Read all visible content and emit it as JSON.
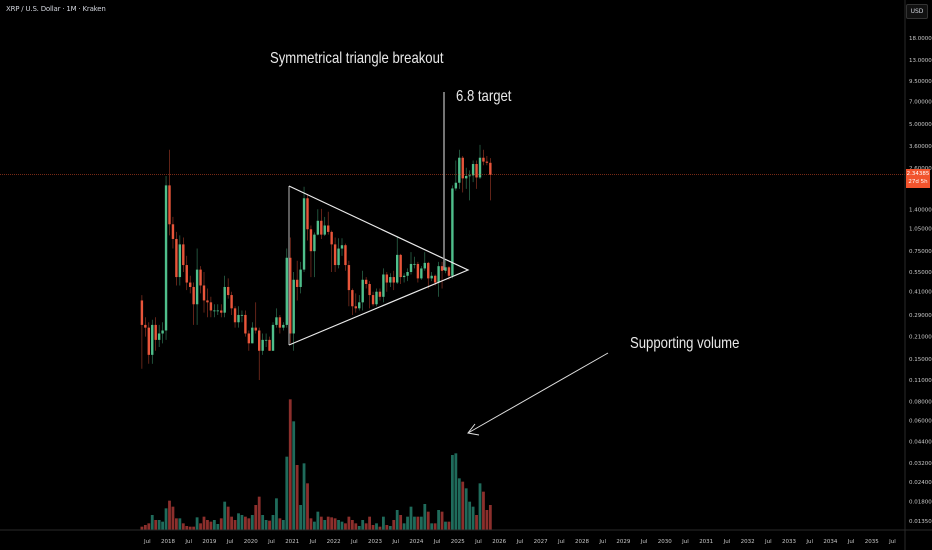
{
  "header": {
    "symbol": "XRP / U.S. Dollar · 1M · Kraken",
    "currency": "USD"
  },
  "annotations": {
    "title": "Symmetrical triangle breakout",
    "target": "6.8 target",
    "volume_note": "Supporting volume"
  },
  "price_label": {
    "price": "2.34385",
    "countdown": "27d 5h",
    "color": "#f2542d"
  },
  "colors": {
    "up": "#4fbf8b",
    "down": "#e8553a",
    "vol_up": "#1f6b5b",
    "vol_down": "#8c2f2c",
    "drawing": "#e6e6e6"
  },
  "chart_data": {
    "type": "candlestick",
    "scale": "log",
    "start": "2017-05",
    "interval": "1M",
    "y_ticks": [
      18,
      13,
      9.5,
      7,
      5,
      3.6,
      2.6,
      1.4,
      1.05,
      0.75,
      0.55,
      0.41,
      0.29,
      0.21,
      0.15,
      0.11,
      0.08,
      0.06,
      0.044,
      0.032,
      0.024,
      0.018,
      0.0135
    ],
    "y_tick_labels": [
      "18.00000",
      "13.00000",
      "9.50000",
      "7.00000",
      "5.00000",
      "3.60000",
      "2.60000",
      "1.40000",
      "1.05000",
      "0.75000",
      "0.55000",
      "0.41000",
      "0.29000",
      "0.21000",
      "0.15000",
      "0.11000",
      "0.08000",
      "0.06000",
      "0.04400",
      "0.03200",
      "0.02400",
      "0.01800",
      "0.01350"
    ],
    "x_labels": [
      "Jul",
      "2018",
      "Jul",
      "2019",
      "Jul",
      "2020",
      "Jul",
      "2021",
      "Jul",
      "2022",
      "Jul",
      "2023",
      "Jul",
      "2024",
      "Jul",
      "2025",
      "Jul",
      "2026",
      "Jul",
      "2027",
      "Jul",
      "2028",
      "Jul",
      "2029",
      "Jul",
      "2030",
      "Jul",
      "2031",
      "Jul",
      "2032",
      "Jul",
      "2033",
      "Jul",
      "2034",
      "Jul",
      "2035",
      "Jul"
    ],
    "ohlc": [
      [
        0.36,
        0.39,
        0.13,
        0.25
      ],
      [
        0.25,
        0.28,
        0.21,
        0.24
      ],
      [
        0.24,
        0.26,
        0.14,
        0.16
      ],
      [
        0.16,
        0.27,
        0.14,
        0.25
      ],
      [
        0.25,
        0.28,
        0.17,
        0.2
      ],
      [
        0.2,
        0.25,
        0.18,
        0.22
      ],
      [
        0.22,
        0.26,
        0.19,
        0.23
      ],
      [
        0.23,
        2.3,
        0.2,
        2.0
      ],
      [
        2.0,
        3.4,
        0.95,
        1.12
      ],
      [
        1.12,
        1.25,
        0.78,
        0.9
      ],
      [
        0.9,
        1.0,
        0.45,
        0.51
      ],
      [
        0.51,
        0.95,
        0.45,
        0.83
      ],
      [
        0.83,
        0.92,
        0.55,
        0.61
      ],
      [
        0.61,
        0.7,
        0.42,
        0.47
      ],
      [
        0.47,
        0.52,
        0.4,
        0.44
      ],
      [
        0.44,
        0.47,
        0.25,
        0.34
      ],
      [
        0.34,
        0.78,
        0.25,
        0.57
      ],
      [
        0.57,
        0.6,
        0.4,
        0.45
      ],
      [
        0.45,
        0.55,
        0.3,
        0.36
      ],
      [
        0.36,
        0.43,
        0.28,
        0.35
      ],
      [
        0.35,
        0.38,
        0.28,
        0.31
      ],
      [
        0.31,
        0.34,
        0.28,
        0.31
      ],
      [
        0.31,
        0.34,
        0.29,
        0.31
      ],
      [
        0.31,
        0.34,
        0.28,
        0.3
      ],
      [
        0.3,
        0.52,
        0.28,
        0.44
      ],
      [
        0.44,
        0.5,
        0.37,
        0.39
      ],
      [
        0.39,
        0.41,
        0.29,
        0.32
      ],
      [
        0.32,
        0.33,
        0.24,
        0.26
      ],
      [
        0.26,
        0.33,
        0.24,
        0.29
      ],
      [
        0.29,
        0.31,
        0.26,
        0.29
      ],
      [
        0.29,
        0.31,
        0.21,
        0.22
      ],
      [
        0.22,
        0.23,
        0.17,
        0.19
      ],
      [
        0.19,
        0.26,
        0.19,
        0.24
      ],
      [
        0.24,
        0.35,
        0.22,
        0.23
      ],
      [
        0.23,
        0.24,
        0.11,
        0.17
      ],
      [
        0.17,
        0.22,
        0.16,
        0.2
      ],
      [
        0.2,
        0.22,
        0.18,
        0.2
      ],
      [
        0.2,
        0.21,
        0.17,
        0.17
      ],
      [
        0.17,
        0.26,
        0.17,
        0.25
      ],
      [
        0.25,
        0.32,
        0.24,
        0.28
      ],
      [
        0.28,
        0.29,
        0.22,
        0.24
      ],
      [
        0.24,
        0.26,
        0.23,
        0.25
      ],
      [
        0.25,
        0.78,
        0.24,
        0.68
      ],
      [
        0.68,
        0.92,
        0.19,
        0.22
      ],
      [
        0.22,
        0.55,
        0.17,
        0.49
      ],
      [
        0.49,
        0.65,
        0.36,
        0.44
      ],
      [
        0.44,
        0.64,
        0.4,
        0.57
      ],
      [
        0.57,
        1.96,
        0.55,
        1.65
      ],
      [
        1.65,
        1.76,
        0.88,
        1.04
      ],
      [
        1.04,
        1.1,
        0.51,
        0.75
      ],
      [
        0.75,
        0.99,
        0.51,
        0.96
      ],
      [
        0.96,
        1.4,
        0.95,
        1.18
      ],
      [
        1.18,
        1.41,
        0.9,
        0.96
      ],
      [
        0.96,
        1.25,
        0.94,
        1.1
      ],
      [
        1.1,
        1.35,
        0.96,
        1.0
      ],
      [
        1.0,
        1.02,
        0.55,
        0.83
      ],
      [
        0.83,
        0.92,
        0.55,
        0.61
      ],
      [
        0.61,
        0.91,
        0.58,
        0.78
      ],
      [
        0.78,
        0.91,
        0.7,
        0.82
      ],
      [
        0.82,
        0.84,
        0.56,
        0.61
      ],
      [
        0.61,
        0.65,
        0.33,
        0.42
      ],
      [
        0.42,
        0.43,
        0.29,
        0.33
      ],
      [
        0.33,
        0.4,
        0.3,
        0.32
      ],
      [
        0.32,
        0.39,
        0.31,
        0.35
      ],
      [
        0.35,
        0.56,
        0.31,
        0.49
      ],
      [
        0.49,
        0.51,
        0.43,
        0.46
      ],
      [
        0.46,
        0.48,
        0.32,
        0.39
      ],
      [
        0.39,
        0.41,
        0.33,
        0.34
      ],
      [
        0.34,
        0.43,
        0.33,
        0.41
      ],
      [
        0.41,
        0.43,
        0.36,
        0.38
      ],
      [
        0.38,
        0.58,
        0.35,
        0.53
      ],
      [
        0.53,
        0.55,
        0.41,
        0.47
      ],
      [
        0.47,
        0.54,
        0.44,
        0.51
      ],
      [
        0.51,
        0.56,
        0.42,
        0.47
      ],
      [
        0.47,
        0.94,
        0.46,
        0.71
      ],
      [
        0.71,
        0.72,
        0.46,
        0.51
      ],
      [
        0.51,
        0.54,
        0.47,
        0.52
      ],
      [
        0.52,
        0.58,
        0.48,
        0.55
      ],
      [
        0.55,
        0.74,
        0.53,
        0.62
      ],
      [
        0.62,
        0.69,
        0.58,
        0.62
      ],
      [
        0.62,
        0.64,
        0.47,
        0.5
      ],
      [
        0.5,
        0.6,
        0.49,
        0.58
      ],
      [
        0.58,
        0.74,
        0.56,
        0.63
      ],
      [
        0.63,
        0.64,
        0.43,
        0.5
      ],
      [
        0.5,
        0.55,
        0.48,
        0.52
      ],
      [
        0.52,
        0.53,
        0.45,
        0.47
      ],
      [
        0.47,
        0.64,
        0.38,
        0.6
      ],
      [
        0.6,
        0.64,
        0.43,
        0.56
      ],
      [
        0.56,
        0.66,
        0.54,
        0.59
      ],
      [
        0.59,
        0.6,
        0.49,
        0.52
      ],
      [
        0.52,
        2.0,
        0.5,
        1.91
      ],
      [
        1.91,
        2.9,
        1.85,
        2.08
      ],
      [
        2.08,
        3.4,
        1.9,
        3.02
      ],
      [
        3.02,
        3.1,
        1.8,
        2.22
      ],
      [
        2.22,
        2.6,
        1.9,
        2.3
      ],
      [
        2.3,
        2.5,
        1.6,
        2.32
      ],
      [
        2.32,
        2.9,
        2.1,
        2.75
      ],
      [
        2.75,
        2.9,
        1.9,
        2.25
      ],
      [
        2.25,
        3.66,
        2.2,
        3.02
      ],
      [
        3.02,
        3.4,
        2.7,
        2.85
      ],
      [
        2.85,
        3.1,
        2.7,
        2.8
      ],
      [
        2.8,
        3.0,
        1.6,
        2.34385
      ]
    ],
    "volume": [
      10,
      15,
      20,
      45,
      30,
      30,
      25,
      65,
      88,
      70,
      35,
      35,
      20,
      12,
      10,
      10,
      38,
      20,
      40,
      30,
      25,
      30,
      18,
      35,
      85,
      70,
      40,
      30,
      50,
      45,
      40,
      35,
      45,
      75,
      100,
      45,
      30,
      28,
      45,
      95,
      35,
      30,
      220,
      392,
      326,
      195,
      75,
      200,
      140,
      35,
      25,
      55,
      40,
      30,
      40,
      38,
      35,
      30,
      25,
      20,
      40,
      30,
      20,
      12,
      30,
      20,
      40,
      15,
      20,
      10,
      40,
      15,
      12,
      30,
      60,
      45,
      20,
      40,
      70,
      40,
      40,
      40,
      78,
      55,
      20,
      20,
      60,
      55,
      25,
      25,
      225,
      230,
      155,
      145,
      125,
      85,
      70,
      45,
      140,
      115,
      60,
      75
    ],
    "current_price": 2.34385,
    "drawings": {
      "triangle": "symmetrical",
      "target_price": 6.8
    }
  }
}
